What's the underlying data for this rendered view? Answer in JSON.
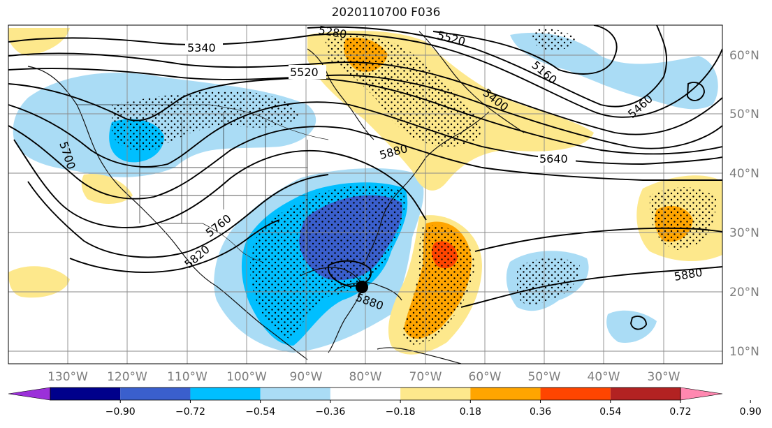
{
  "title": "2020110700 F036",
  "longitude_labels": [
    "130°W",
    "120°W",
    "110°W",
    "100°W",
    "90°W",
    "80°W",
    "70°W",
    "60°W",
    "50°W",
    "40°W",
    "30°W"
  ],
  "latitude_labels": [
    "60°N",
    "50°N",
    "40°N",
    "30°N",
    "20°N",
    "10°N"
  ],
  "contour_labels": [
    "5340",
    "5520",
    "5280",
    "5520",
    "5160",
    "5400",
    "5460",
    "5700",
    "5640",
    "5880",
    "5760",
    "5820",
    "5880",
    "5880"
  ],
  "colorbar": {
    "ticks": [
      "−0.90",
      "−0.72",
      "−0.54",
      "−0.36",
      "−0.18",
      "0.18",
      "0.36",
      "0.54",
      "0.72",
      "0.90"
    ],
    "colors": [
      "#9b30d9",
      "#00008b",
      "#3a5fcd",
      "#00bfff",
      "#aadcf5",
      "#ffffff",
      "#fde88c",
      "#ffa500",
      "#ff4500",
      "#b22222",
      "#ff88b0"
    ]
  },
  "marker": "storm-center-dot"
}
